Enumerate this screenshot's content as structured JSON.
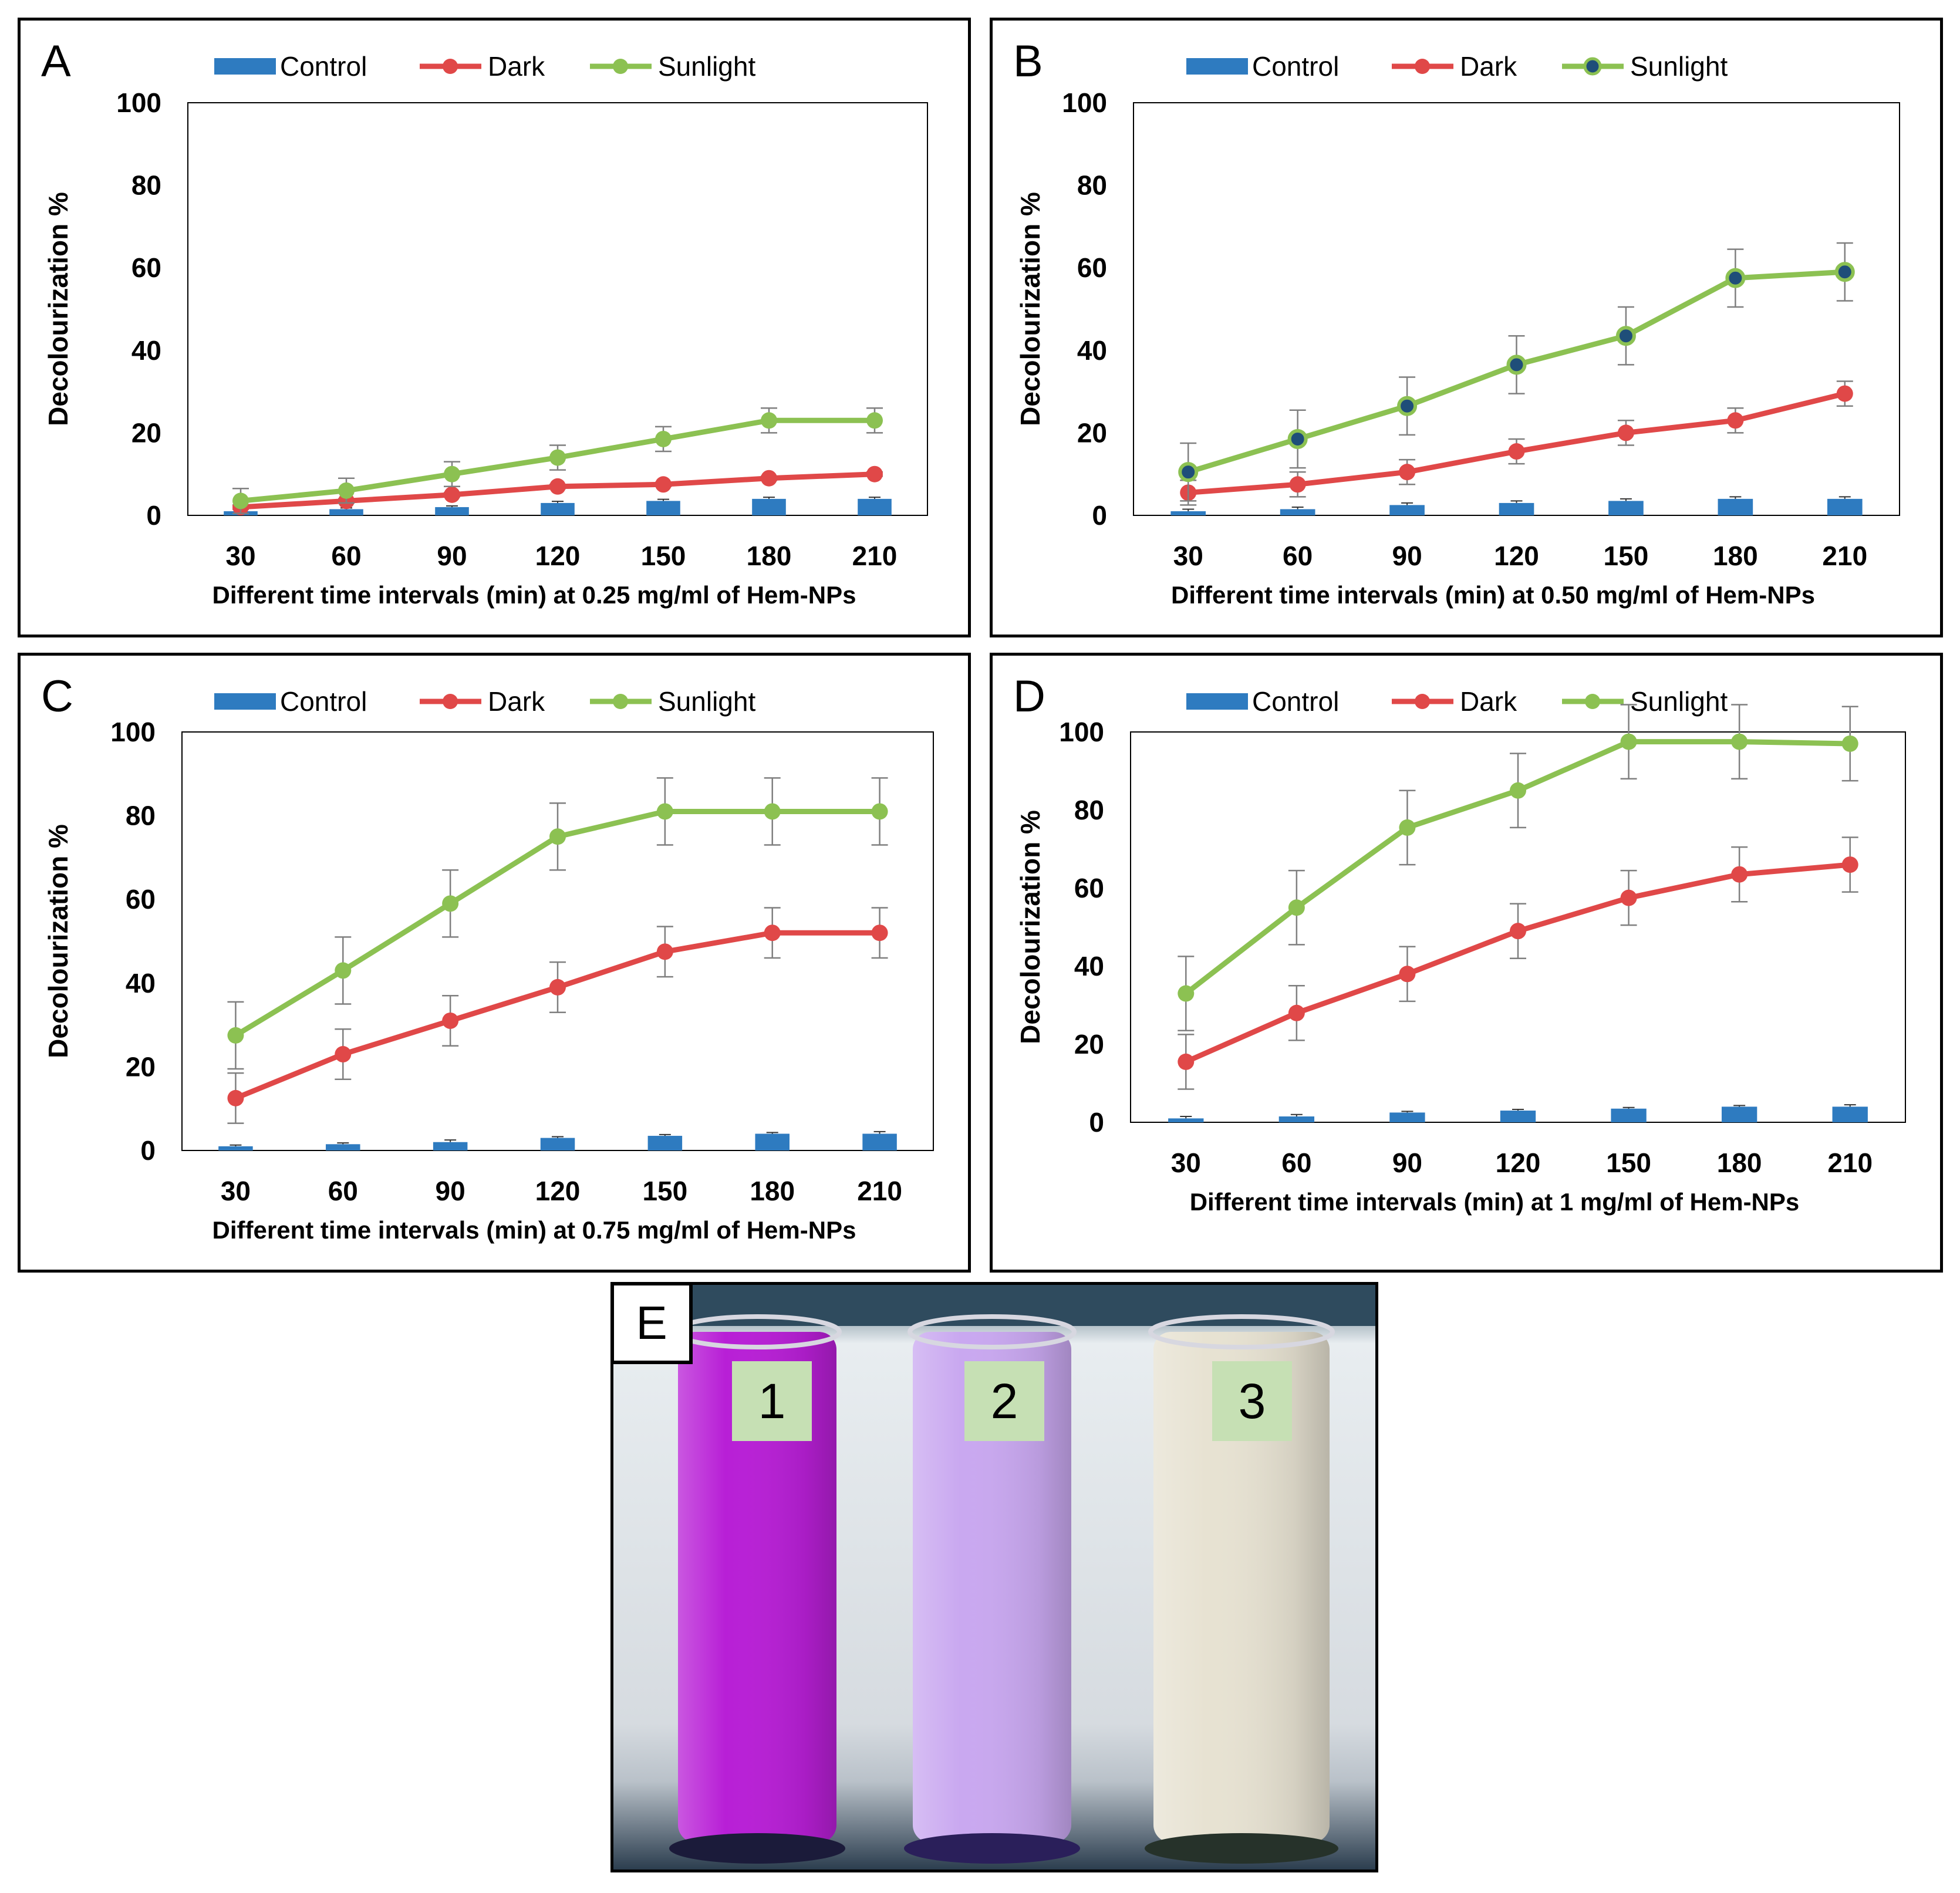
{
  "colors": {
    "control": "#2e7bc0",
    "dark": "#e04848",
    "sunlight": "#8cc152",
    "axis": "#000000",
    "error_bar": "#7f7f7f",
    "marker_fill_b": "#1f4e79"
  },
  "legend_labels": {
    "control": "Control",
    "dark": "Dark",
    "sunlight": "Sunlight"
  },
  "chart_data": [
    {
      "panel": "A",
      "type": "line",
      "title": "",
      "xlabel": "Different time intervals (min) at 0.25 mg/ml of Hem-NPs",
      "ylabel": "Decolourization %",
      "categories": [
        "30",
        "60",
        "90",
        "120",
        "150",
        "180",
        "210"
      ],
      "ylim": [
        0,
        100
      ],
      "yticks": [
        "0",
        "20",
        "40",
        "60",
        "80",
        "100"
      ],
      "series": [
        {
          "name": "Control",
          "type": "bar",
          "values": [
            1,
            1.5,
            2,
            3,
            3.5,
            4,
            4
          ],
          "errors": [
            0.3,
            0.3,
            0.3,
            0.4,
            0.4,
            0.4,
            0.4
          ]
        },
        {
          "name": "Dark",
          "type": "line",
          "values": [
            2,
            3.5,
            5,
            7,
            7.5,
            9,
            10
          ],
          "errors": [
            0.5,
            0.5,
            0.5,
            0.5,
            0.5,
            0.5,
            0.5
          ]
        },
        {
          "name": "Sunlight",
          "type": "line",
          "values": [
            3.5,
            6,
            10,
            14,
            18.5,
            23,
            23
          ],
          "errors": [
            3,
            3,
            3,
            3,
            3,
            3,
            3
          ]
        }
      ]
    },
    {
      "panel": "B",
      "type": "line",
      "title": "",
      "xlabel": "Different time intervals (min) at 0.50 mg/ml of Hem-NPs",
      "ylabel": "Decolourization %",
      "categories": [
        "30",
        "60",
        "90",
        "120",
        "150",
        "180",
        "210"
      ],
      "ylim": [
        0,
        100
      ],
      "yticks": [
        "0",
        "20",
        "40",
        "60",
        "80",
        "100"
      ],
      "series": [
        {
          "name": "Control",
          "type": "bar",
          "values": [
            1,
            1.5,
            2.5,
            3,
            3.5,
            4,
            4
          ],
          "errors": [
            0.5,
            0.5,
            0.5,
            0.5,
            0.5,
            0.5,
            0.5
          ]
        },
        {
          "name": "Dark",
          "type": "line",
          "values": [
            5.5,
            7.5,
            10.5,
            15.5,
            20,
            23,
            29.5
          ],
          "errors": [
            3,
            3,
            3,
            3,
            3,
            3,
            3
          ]
        },
        {
          "name": "Sunlight",
          "type": "line",
          "values": [
            10.5,
            18.5,
            26.5,
            36.5,
            43.5,
            57.5,
            59
          ],
          "errors": [
            7,
            7,
            7,
            7,
            7,
            7,
            7
          ]
        }
      ]
    },
    {
      "panel": "C",
      "type": "line",
      "title": "",
      "xlabel": "Different time intervals (min) at 0.75 mg/ml of Hem-NPs",
      "ylabel": "Decolourization %",
      "categories": [
        "30",
        "60",
        "90",
        "120",
        "150",
        "180",
        "210"
      ],
      "ylim": [
        0,
        100
      ],
      "yticks": [
        "0",
        "20",
        "40",
        "60",
        "80",
        "100"
      ],
      "series": [
        {
          "name": "Control",
          "type": "bar",
          "values": [
            1,
            1.5,
            2,
            3,
            3.5,
            4,
            4
          ],
          "errors": [
            0.3,
            0.3,
            0.5,
            0.3,
            0.3,
            0.3,
            0.5
          ]
        },
        {
          "name": "Dark",
          "type": "line",
          "values": [
            12.5,
            23,
            31,
            39,
            47.5,
            52,
            52
          ],
          "errors": [
            6,
            6,
            6,
            6,
            6,
            6,
            6
          ]
        },
        {
          "name": "Sunlight",
          "type": "line",
          "values": [
            27.5,
            43,
            59,
            75,
            81,
            81,
            81
          ],
          "errors": [
            8,
            8,
            8,
            8,
            8,
            8,
            8
          ]
        }
      ]
    },
    {
      "panel": "D",
      "type": "line",
      "title": "",
      "xlabel": "Different time intervals  (min) at 1 mg/ml of Hem-NPs",
      "ylabel": "Decolourization %",
      "categories": [
        "30",
        "60",
        "90",
        "120",
        "150",
        "180",
        "210"
      ],
      "ylim": [
        0,
        100
      ],
      "yticks": [
        "0",
        "20",
        "40",
        "60",
        "80",
        "100"
      ],
      "series": [
        {
          "name": "Control",
          "type": "bar",
          "values": [
            1,
            1.5,
            2.5,
            3,
            3.5,
            4,
            4
          ],
          "errors": [
            0.5,
            0.5,
            0.3,
            0.3,
            0.3,
            0.3,
            0.5
          ]
        },
        {
          "name": "Dark",
          "type": "line",
          "values": [
            15.5,
            28,
            38,
            49,
            57.5,
            63.5,
            66
          ],
          "errors": [
            7,
            7,
            7,
            7,
            7,
            7,
            7
          ]
        },
        {
          "name": "Sunlight",
          "type": "line",
          "values": [
            33,
            55,
            75.5,
            85,
            97.5,
            97.5,
            97
          ],
          "errors": [
            9.5,
            9.5,
            9.5,
            9.5,
            9.5,
            9.5,
            9.5
          ]
        }
      ]
    }
  ],
  "photo": {
    "panel_label": "E",
    "tube_labels": [
      "1",
      "2",
      "3"
    ],
    "tube_colors": [
      "#b81fd6",
      "#c9a8f0",
      "#e7e2d2"
    ]
  }
}
